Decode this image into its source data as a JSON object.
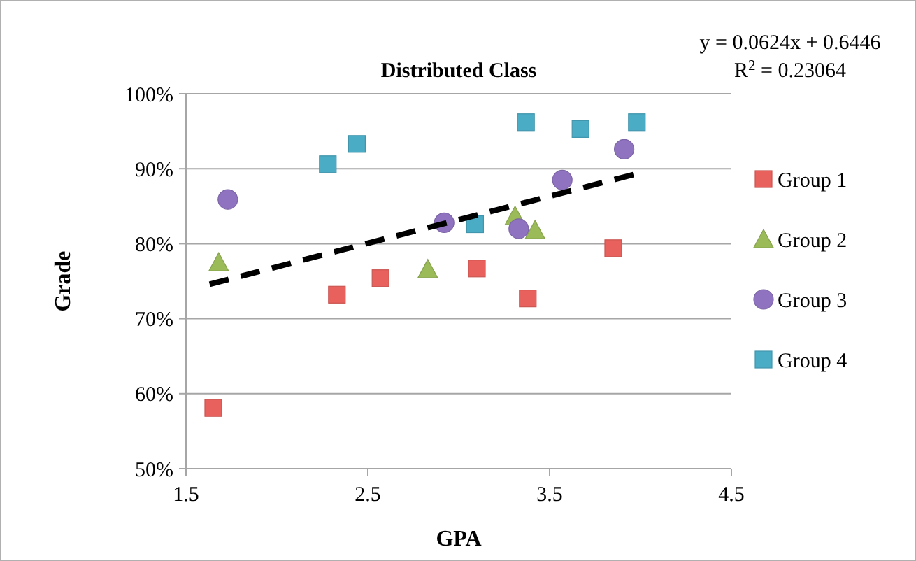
{
  "chart_data": {
    "type": "scatter",
    "title": "Distributed Class",
    "xlabel": "GPA",
    "ylabel": "Grade",
    "xlim": [
      1.5,
      4.5
    ],
    "xticks": [
      1.5,
      2.5,
      3.5,
      4.5
    ],
    "ylim": [
      50,
      100
    ],
    "yticks": [
      {
        "value": 50,
        "label": "50%"
      },
      {
        "value": 60,
        "label": "60%"
      },
      {
        "value": 70,
        "label": "70%"
      },
      {
        "value": 80,
        "label": "80%"
      },
      {
        "value": 90,
        "label": "90%"
      },
      {
        "value": 100,
        "label": "100%"
      }
    ],
    "grid": "y",
    "legend": "right",
    "annotations": [
      "y = 0.0624x + 0.6446",
      "R$^{2}$ = 0.23064"
    ],
    "series": [
      {
        "name": "Group 1",
        "color": "#e8615c",
        "marker": "square",
        "x": [
          1.65,
          2.33,
          2.57,
          3.1,
          3.38,
          3.85
        ],
        "values": [
          58.1,
          73.2,
          75.4,
          76.7,
          72.7,
          79.4
        ]
      },
      {
        "name": "Group 2",
        "color": "#9bbb59",
        "marker": "triangle",
        "x": [
          1.68,
          2.83,
          3.31,
          3.42
        ],
        "values": [
          77.5,
          76.6,
          83.7,
          81.8
        ]
      },
      {
        "name": "Group 3",
        "color": "#8f73c0",
        "marker": "circle",
        "x": [
          1.73,
          2.92,
          3.33,
          3.57,
          3.91
        ],
        "values": [
          85.9,
          82.8,
          82.0,
          88.5,
          92.6
        ]
      },
      {
        "name": "Group 4",
        "color": "#4bacc6",
        "marker": "square",
        "x": [
          2.28,
          2.44,
          3.09,
          3.37,
          3.67,
          3.98
        ],
        "values": [
          90.6,
          93.3,
          82.6,
          96.2,
          95.3,
          96.2
        ]
      },
      {
        "type": "line",
        "color": "#000000",
        "line_style": "dashed",
        "marker": "none",
        "x": [
          1.63,
          3.99
        ],
        "values": [
          74.6,
          89.4
        ]
      }
    ]
  }
}
